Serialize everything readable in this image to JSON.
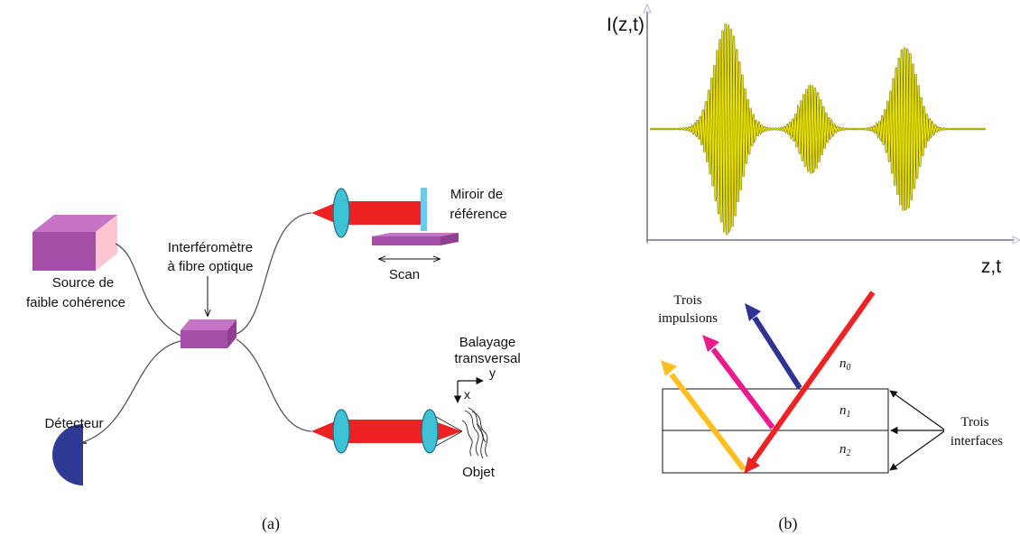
{
  "panel_a": {
    "source_label_line1": "Source de",
    "source_label_line2": "faible cohérence",
    "interferometer_label_line1": "Interféromètre",
    "interferometer_label_line2": "à fibre optique",
    "mirror_label_line1": "Miroir de",
    "mirror_label_line2": "référence",
    "scan_label": "Scan",
    "transverse_label_line1": "Balayage",
    "transverse_label_line2": "transversal",
    "axis_x": "x",
    "axis_y": "y",
    "detector_label": "Détecteur",
    "object_label": "Objet",
    "caption": "(a)"
  },
  "panel_b": {
    "signal_ylabel": "I(z,t)",
    "signal_xlabel": "z,t",
    "pulses_label_line1": "Trois",
    "pulses_label_line2": "impulsions",
    "interfaces_label_line1": "Trois",
    "interfaces_label_line2": "interfaces",
    "n0": "n",
    "n0_sub": "0",
    "n1": "n",
    "n1_sub": "1",
    "n2": "n",
    "n2_sub": "2",
    "caption": "(b)"
  },
  "signal_packets": [
    {
      "center": 0.23,
      "amplitude": 1.0,
      "width": 0.055
    },
    {
      "center": 0.48,
      "amplitude": 0.42,
      "width": 0.045
    },
    {
      "center": 0.76,
      "amplitude": 0.78,
      "width": 0.05
    }
  ],
  "colors": {
    "purple": "#a64fa8",
    "purple_light": "#c774c6",
    "pink_face": "#ffc6d2",
    "red_beam": "#ee2222",
    "cyan_lens": "#3fc1d6",
    "mirror_blue": "#6fc8ee",
    "detector_blue": "#2e3a94",
    "signal_yellow": "#e8e000",
    "pulse_yellow": "#ffbf1f",
    "pulse_magenta": "#ec1a8c",
    "pulse_navy": "#2f3290"
  }
}
